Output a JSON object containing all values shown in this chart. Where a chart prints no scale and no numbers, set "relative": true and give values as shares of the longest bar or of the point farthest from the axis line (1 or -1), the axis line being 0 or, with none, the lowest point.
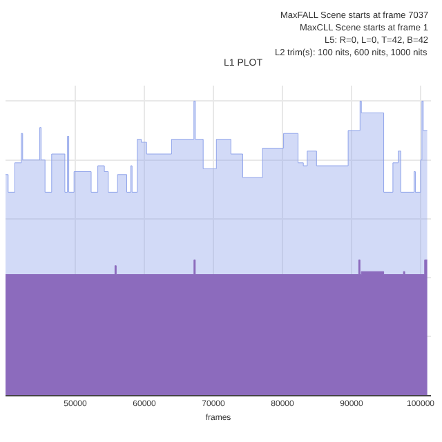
{
  "chart_data": {
    "type": "area",
    "title": "L1 PLOT",
    "xlabel": "frames",
    "relative": true,
    "grid": true,
    "annotations": [
      "MaxFALL Scene starts at frame 7037",
      "MaxCLL Scene starts at frame 1",
      "L5: R=0, L=0, T=42, B=42",
      "L2 trim(s): 100 nits, 600 nits, 1000 nits"
    ],
    "xlim": [
      39900,
      101500
    ],
    "xticks": [
      50000,
      60000,
      70000,
      80000,
      90000,
      100000
    ],
    "series": [
      {
        "color": "#8fa3ea",
        "x": [
          39900,
          40280,
          40280,
          41240,
          41240,
          42190,
          42190,
          42380,
          42380,
          44860,
          44860,
          45050,
          45050,
          45620,
          45620,
          46580,
          46580,
          48490,
          48490,
          48870,
          48870,
          49060,
          49060,
          49820,
          49820,
          52300,
          52300,
          53260,
          53260,
          54210,
          54210,
          54780,
          54780,
          56120,
          56120,
          57450,
          57450,
          58030,
          58030,
          58220,
          58220,
          58980,
          58980,
          59550,
          59550,
          60320,
          60320,
          63940,
          63940,
          67180,
          67180,
          67380,
          67380,
          68520,
          68520,
          70430,
          70430,
          72530,
          72530,
          74240,
          74240,
          77110,
          77110,
          80160,
          80160,
          82260,
          82260,
          83020,
          83020,
          83590,
          83590,
          84930,
          84930,
          89510,
          89510,
          91230,
          91230,
          91420,
          91420,
          94660,
          94660,
          95990,
          95990,
          96760,
          96760,
          97140,
          97140,
          99050,
          99050,
          99240,
          99240,
          100000,
          100000,
          100190,
          100190,
          100380,
          100380,
          100960
        ],
        "values": [
          0.75,
          0.75,
          0.69,
          0.69,
          0.79,
          0.79,
          0.89,
          0.89,
          0.8,
          0.8,
          0.91,
          0.91,
          0.8,
          0.8,
          0.69,
          0.69,
          0.82,
          0.82,
          0.69,
          0.69,
          0.88,
          0.88,
          0.69,
          0.69,
          0.76,
          0.76,
          0.69,
          0.69,
          0.78,
          0.78,
          0.76,
          0.76,
          0.69,
          0.69,
          0.75,
          0.75,
          0.69,
          0.69,
          0.78,
          0.78,
          0.69,
          0.69,
          0.87,
          0.87,
          0.86,
          0.86,
          0.82,
          0.82,
          0.87,
          0.87,
          1.0,
          1.0,
          0.87,
          0.87,
          0.77,
          0.77,
          0.87,
          0.87,
          0.82,
          0.82,
          0.74,
          0.74,
          0.84,
          0.84,
          0.89,
          0.89,
          0.79,
          0.79,
          0.78,
          0.78,
          0.83,
          0.83,
          0.78,
          0.78,
          0.9,
          0.9,
          1.0,
          1.0,
          0.96,
          0.96,
          0.69,
          0.69,
          0.79,
          0.79,
          0.83,
          0.83,
          0.69,
          0.69,
          0.76,
          0.76,
          0.69,
          0.69,
          0.8,
          0.8,
          1.0,
          1.0,
          0.9,
          0.9
        ]
      },
      {
        "color": "#8c6bbd",
        "x": [
          39900,
          55740,
          55740,
          55930,
          55930,
          67180,
          67180,
          67380,
          67380,
          91040,
          91040,
          91230,
          91230,
          91420,
          91420,
          94660,
          94660,
          97520,
          97520,
          97710,
          97710,
          100580,
          100580,
          100960
        ],
        "values": [
          0.41,
          0.41,
          0.44,
          0.44,
          0.41,
          0.41,
          0.46,
          0.46,
          0.41,
          0.41,
          0.46,
          0.46,
          0.41,
          0.41,
          0.42,
          0.42,
          0.41,
          0.41,
          0.42,
          0.42,
          0.41,
          0.41,
          0.46,
          0.46
        ]
      }
    ]
  }
}
